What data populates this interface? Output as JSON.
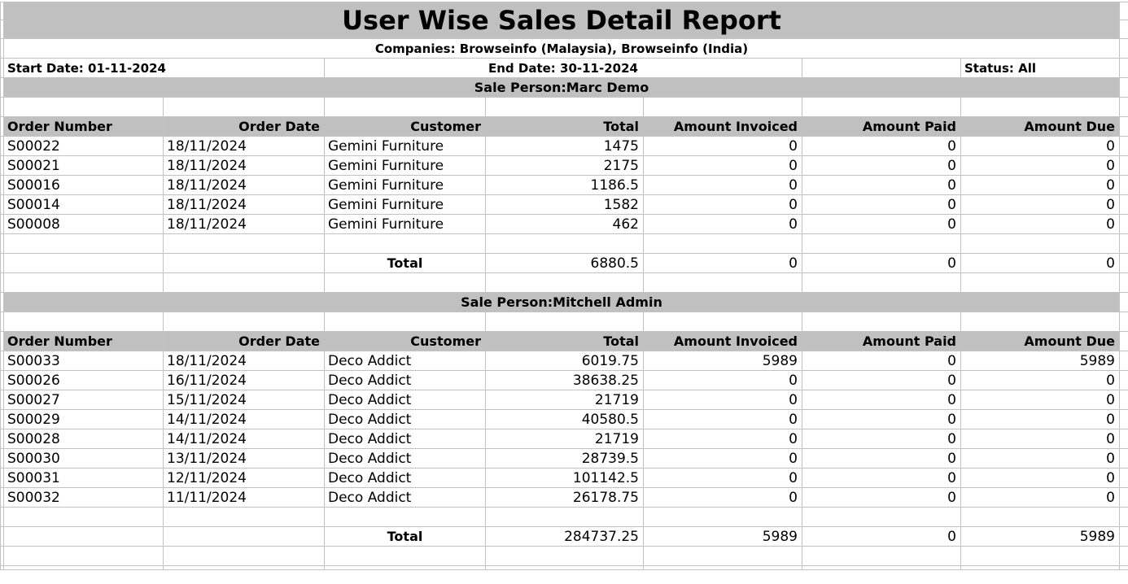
{
  "report": {
    "title": "User Wise Sales Detail Report",
    "companies_line": "Companies: Browseinfo (Malaysia), Browseinfo (India)",
    "start_date": "Start Date: 01-11-2024",
    "end_date": "End Date: 30-11-2024",
    "status": "Status: All"
  },
  "columns": [
    "Order Number",
    "Order Date",
    "Customer",
    "Total",
    "Amount Invoiced",
    "Amount Paid",
    "Amount Due"
  ],
  "sections": [
    {
      "sale_person": "Sale Person:Marc Demo",
      "rows": [
        [
          "S00022",
          "18/11/2024",
          "Gemini Furniture",
          "1475",
          "0",
          "0",
          "0"
        ],
        [
          "S00021",
          "18/11/2024",
          "Gemini Furniture",
          "2175",
          "0",
          "0",
          "0"
        ],
        [
          "S00016",
          "18/11/2024",
          "Gemini Furniture",
          "1186.5",
          "0",
          "0",
          "0"
        ],
        [
          "S00014",
          "18/11/2024",
          "Gemini Furniture",
          "1582",
          "0",
          "0",
          "0"
        ],
        [
          "S00008",
          "18/11/2024",
          "Gemini Furniture",
          "462",
          "0",
          "0",
          "0"
        ]
      ],
      "total_label": "Total",
      "totals": [
        "6880.5",
        "0",
        "0",
        "0"
      ]
    },
    {
      "sale_person": "Sale Person:Mitchell Admin",
      "rows": [
        [
          "S00033",
          "18/11/2024",
          "Deco Addict",
          "6019.75",
          "5989",
          "0",
          "5989"
        ],
        [
          "S00026",
          "16/11/2024",
          "Deco Addict",
          "38638.25",
          "0",
          "0",
          "0"
        ],
        [
          "S00027",
          "15/11/2024",
          "Deco Addict",
          "21719",
          "0",
          "0",
          "0"
        ],
        [
          "S00029",
          "14/11/2024",
          "Deco Addict",
          "40580.5",
          "0",
          "0",
          "0"
        ],
        [
          "S00028",
          "14/11/2024",
          "Deco Addict",
          "21719",
          "0",
          "0",
          "0"
        ],
        [
          "S00030",
          "13/11/2024",
          "Deco Addict",
          "28739.5",
          "0",
          "0",
          "0"
        ],
        [
          "S00031",
          "12/11/2024",
          "Deco Addict",
          "101142.5",
          "0",
          "0",
          "0"
        ],
        [
          "S00032",
          "11/11/2024",
          "Deco Addict",
          "26178.75",
          "0",
          "0",
          "0"
        ]
      ],
      "total_label": "Total",
      "totals": [
        "284737.25",
        "5989",
        "0",
        "5989"
      ]
    }
  ],
  "colors": {
    "header_fill": "#c0c0c0",
    "gridline": "#c2c2c2",
    "text": "#000000"
  }
}
